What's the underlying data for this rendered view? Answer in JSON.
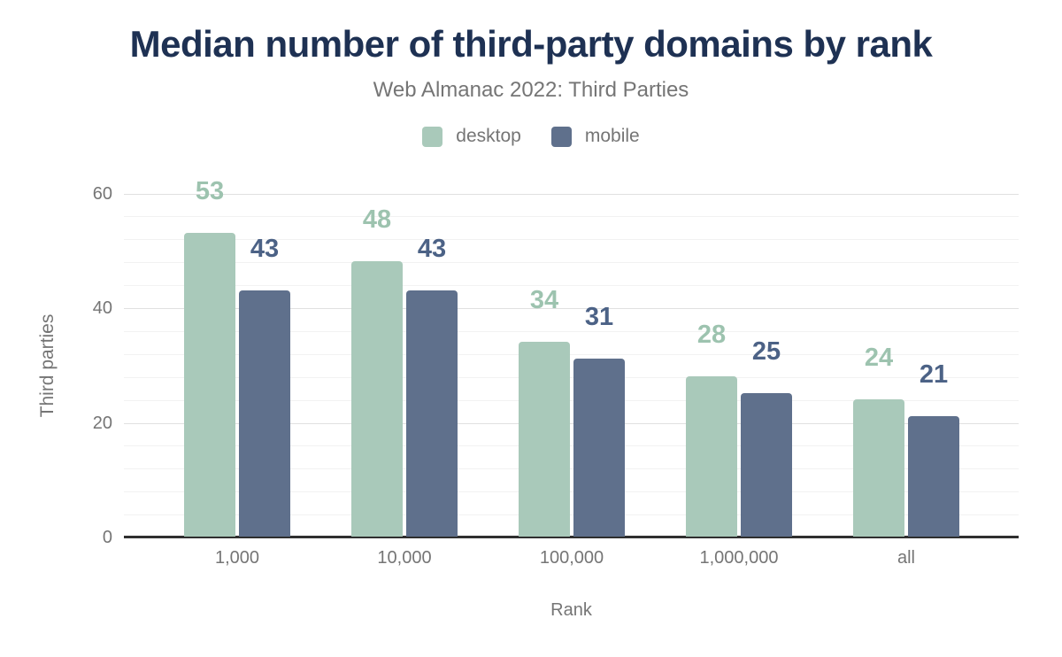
{
  "title": "Median number of third-party domains by rank",
  "subtitle": "Web Almanac 2022: Third Parties",
  "chart_data": {
    "type": "bar",
    "title": "Median number of third-party domains by rank",
    "subtitle": "Web Almanac 2022: Third Parties",
    "categories": [
      "1,000",
      "10,000",
      "100,000",
      "1,000,000",
      "all"
    ],
    "series": [
      {
        "name": "desktop",
        "values": [
          53,
          48,
          34,
          28,
          24
        ],
        "color": "#a9c9ba",
        "label_color": "#9dc3af"
      },
      {
        "name": "mobile",
        "values": [
          43,
          43,
          31,
          25,
          21
        ],
        "color": "#5f708c",
        "label_color": "#4c6286"
      }
    ],
    "xlabel": "Rank",
    "ylabel": "Third parties",
    "ylim": [
      0,
      60
    ],
    "yticks": [
      0,
      20,
      40,
      60
    ],
    "minor_grid_step": 4,
    "grid": "on",
    "legend_position": "top"
  },
  "colors": {
    "title_text": "#1e3153",
    "muted_text": "#757575",
    "axis_line": "#2f2f2f",
    "grid_major": "#e0e0e0",
    "grid_minor": "#f2f2f2",
    "background": "#ffffff"
  }
}
